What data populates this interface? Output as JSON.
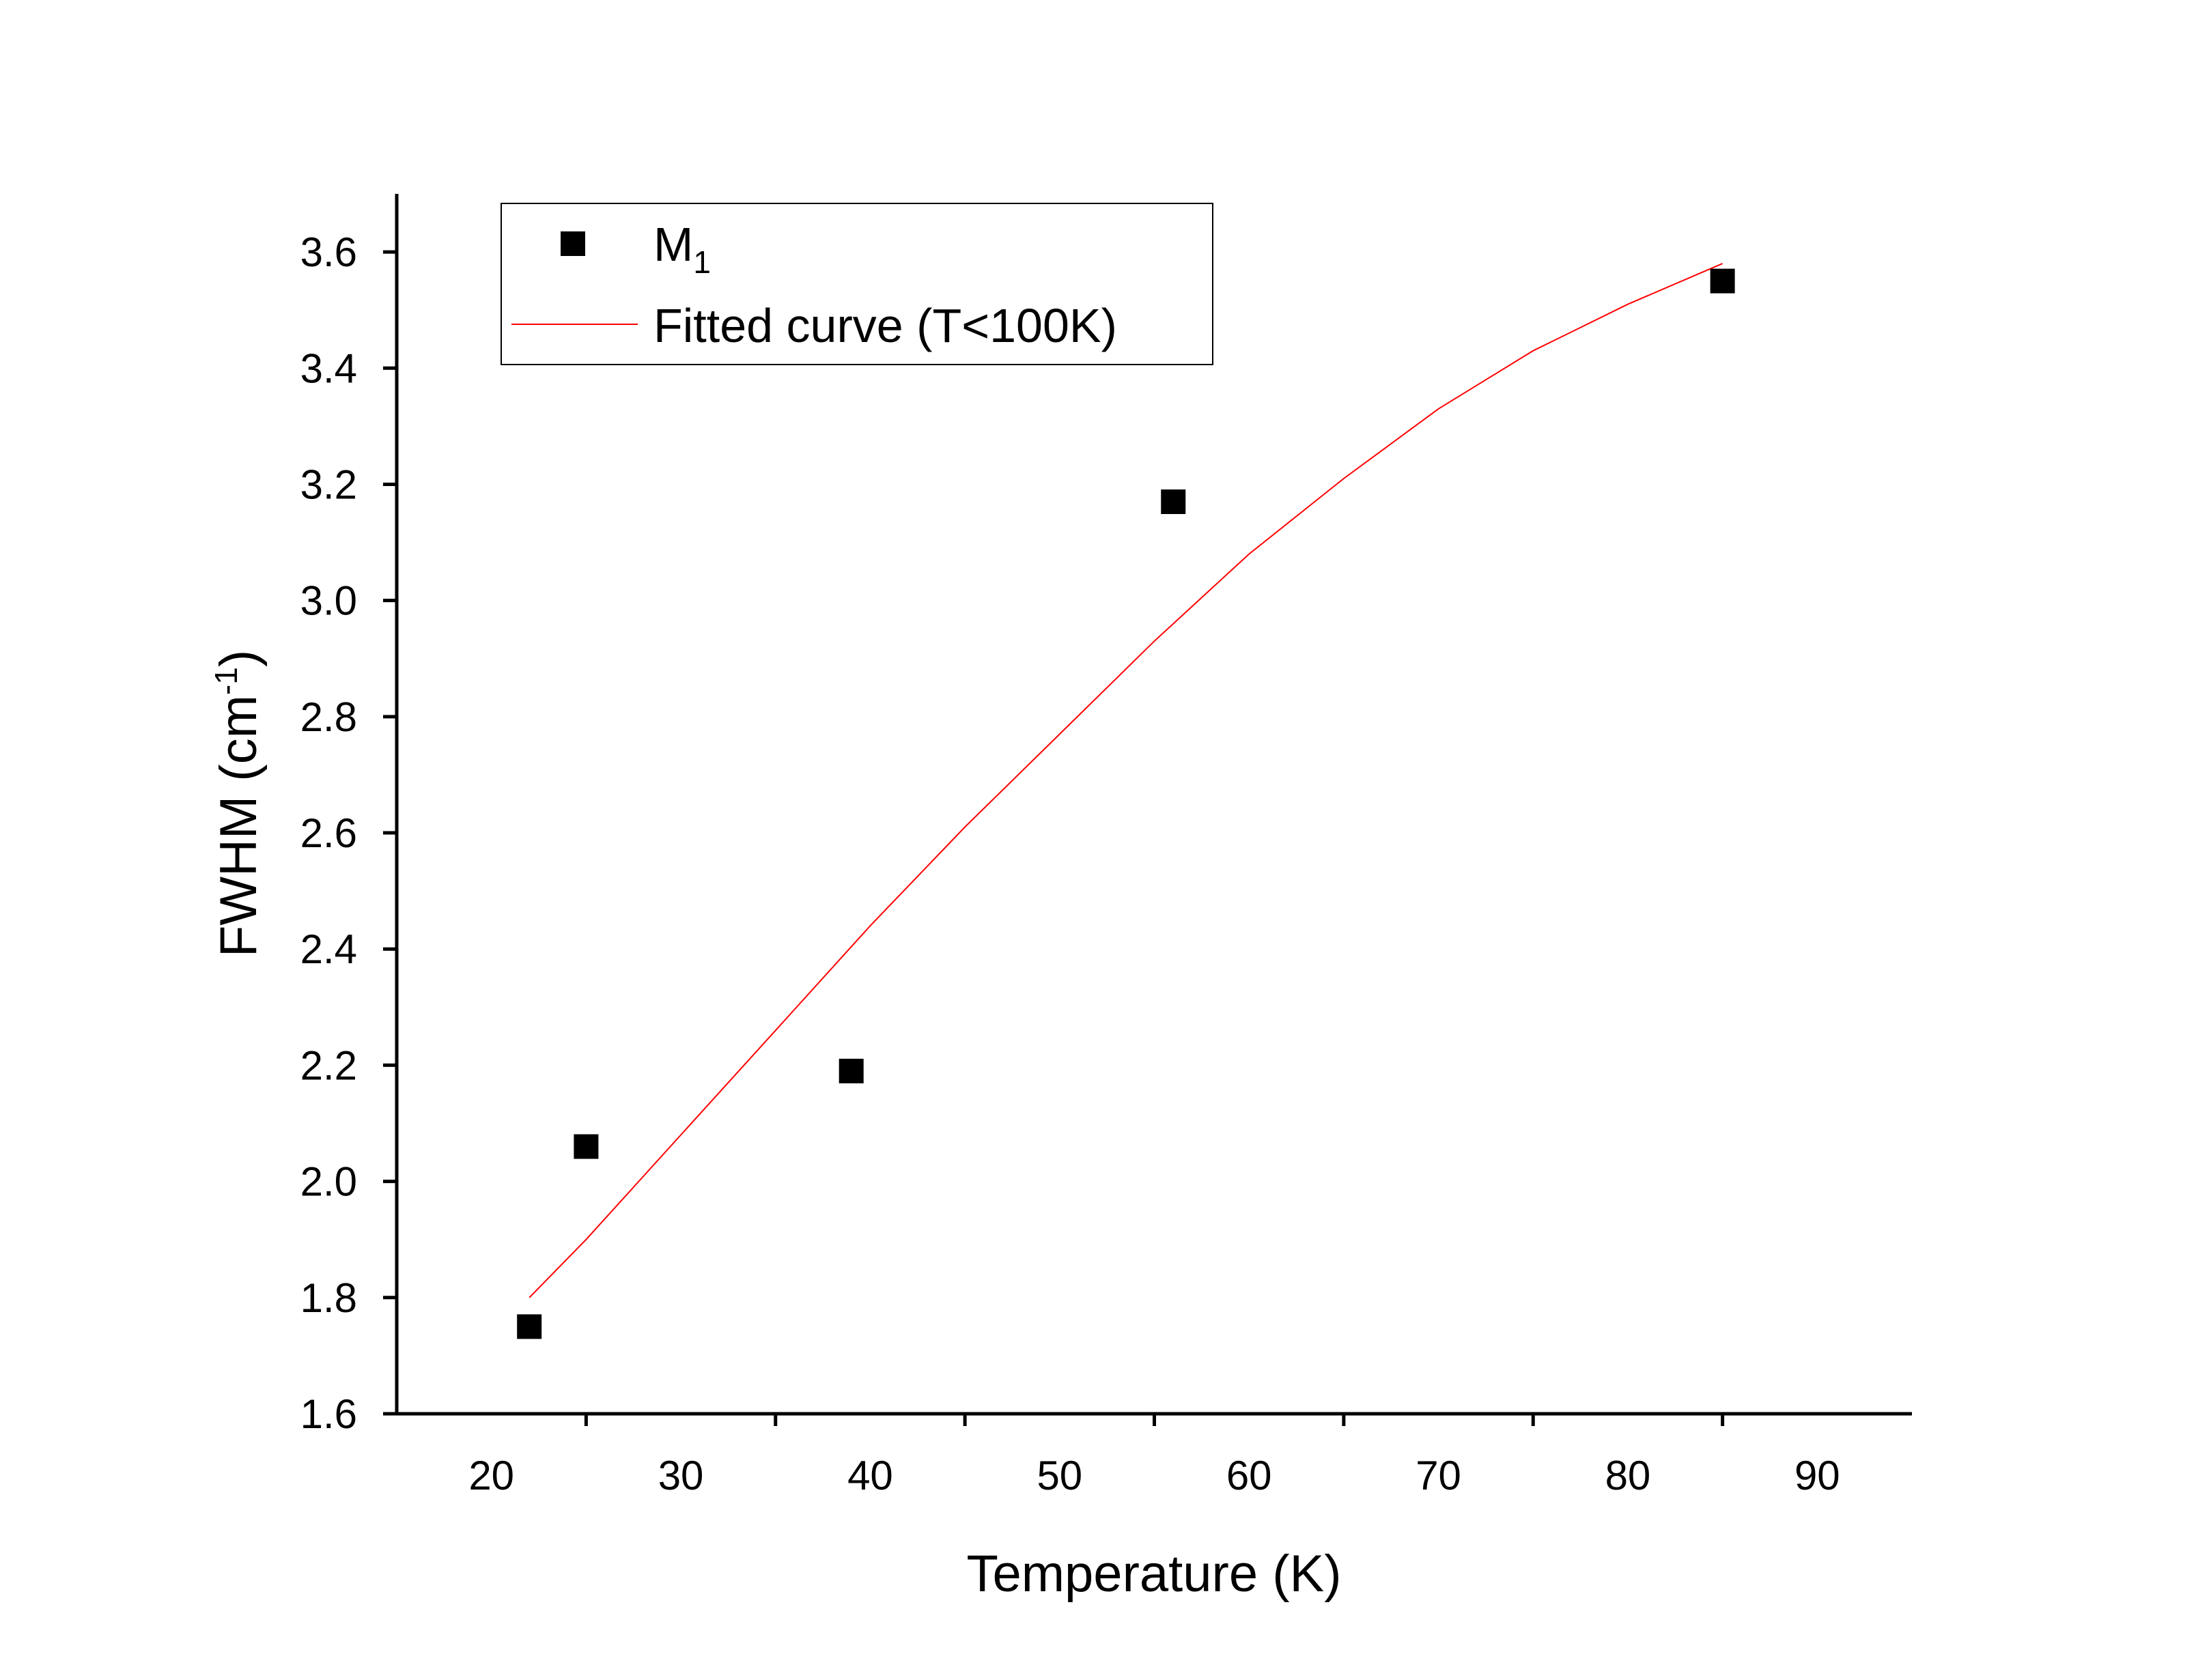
{
  "chart_data": {
    "type": "scatter",
    "title": "",
    "xlabel": "Temperature (K)",
    "ylabel": {
      "main": "FWHM (cm",
      "sup": "-1",
      "close": ")"
    },
    "xlim": [
      15,
      95
    ],
    "ylim": [
      1.6,
      3.7
    ],
    "xticks": [
      20,
      30,
      40,
      50,
      60,
      70,
      80,
      90
    ],
    "xtick_labels": [
      "20",
      "30",
      "40",
      "50",
      "60",
      "70",
      "80",
      "90"
    ],
    "yticks": [
      1.6,
      1.8,
      2.0,
      2.2,
      2.4,
      2.6,
      2.8,
      3.0,
      3.2,
      3.4,
      3.6
    ],
    "ytick_labels": [
      "1.6",
      "1.8",
      "2.0",
      "2.2",
      "2.4",
      "2.6",
      "2.8",
      "3.0",
      "3.2",
      "3.4",
      "3.6"
    ],
    "grid": false,
    "legend_position": "top-left",
    "series": [
      {
        "name": "M",
        "name_sub": "1",
        "kind": "markers",
        "marker": "square",
        "color": "#000000",
        "x": [
          22,
          25,
          39,
          56,
          85
        ],
        "y": [
          1.75,
          2.06,
          2.19,
          3.17,
          3.55
        ]
      },
      {
        "name": "Fitted curve (T<100K)",
        "kind": "line",
        "color": "#ff0000",
        "x": [
          22,
          25,
          30,
          35,
          40,
          45,
          50,
          55,
          60,
          65,
          70,
          75,
          80,
          85
        ],
        "y": [
          1.8,
          1.9,
          2.08,
          2.26,
          2.44,
          2.61,
          2.77,
          2.93,
          3.08,
          3.21,
          3.33,
          3.43,
          3.51,
          3.58
        ]
      }
    ]
  }
}
